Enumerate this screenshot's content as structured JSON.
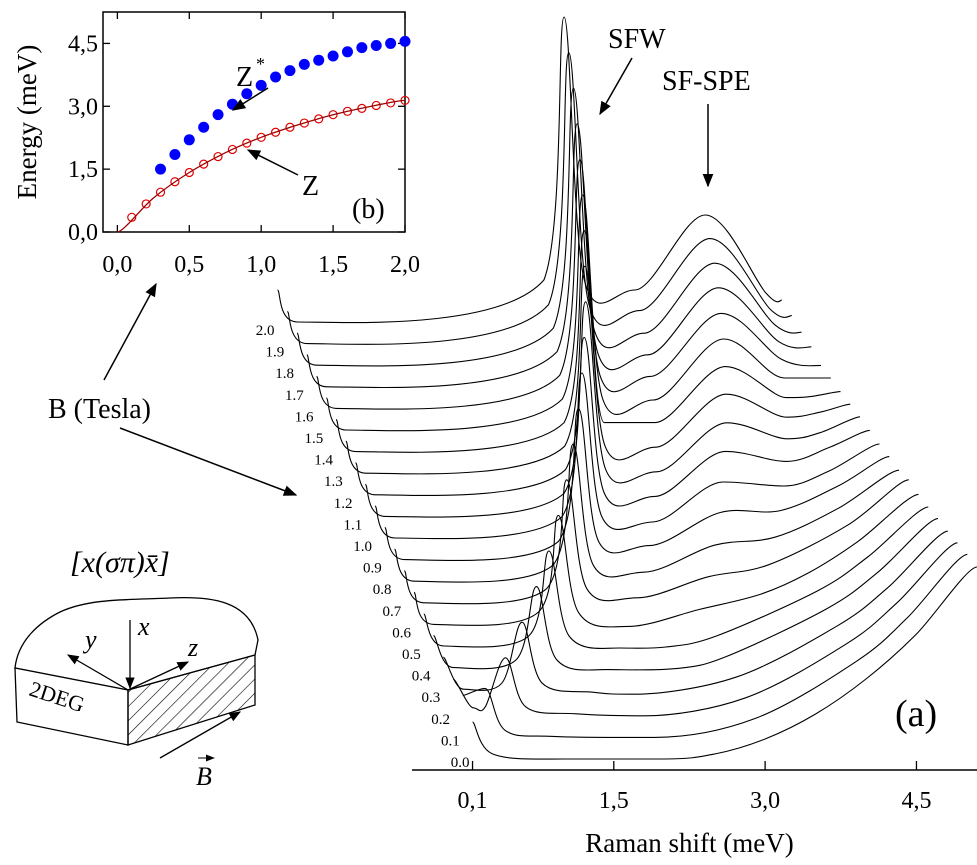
{
  "chart_data": [
    {
      "type": "scatter",
      "y_label": "Energy (meV)",
      "xlim": [
        -0.1,
        2.0
      ],
      "ylim": [
        0,
        5.25
      ],
      "xticks": [
        {
          "value": 0,
          "label": "0,0"
        },
        {
          "value": 0.5,
          "label": "0,5"
        },
        {
          "value": 1.0,
          "label": "1,0"
        },
        {
          "value": 1.5,
          "label": "1,5"
        },
        {
          "value": 2.0,
          "label": "2,0"
        }
      ],
      "yticks": [
        {
          "value": 0,
          "label": "0,0"
        },
        {
          "value": 1.5,
          "label": "1,5"
        },
        {
          "value": 3.0,
          "label": "3,0"
        },
        {
          "value": 4.5,
          "label": "4,5"
        }
      ],
      "series": [
        {
          "style": "dots",
          "color": "#0000ff",
          "x": [
            0.3,
            0.4,
            0.5,
            0.6,
            0.7,
            0.8,
            0.9,
            1.0,
            1.1,
            1.2,
            1.3,
            1.4,
            1.5,
            1.6,
            1.7,
            1.8,
            1.9,
            2.0
          ],
          "values": [
            1.5,
            1.85,
            2.2,
            2.5,
            2.8,
            3.05,
            3.3,
            3.5,
            3.7,
            3.85,
            4.0,
            4.1,
            4.2,
            4.3,
            4.4,
            4.45,
            4.5,
            4.55
          ]
        },
        {
          "style": "circles",
          "color": "#e00000",
          "x": [
            0.1,
            0.2,
            0.3,
            0.4,
            0.5,
            0.6,
            0.7,
            0.8,
            0.9,
            1.0,
            1.1,
            1.2,
            1.3,
            1.4,
            1.5,
            1.6,
            1.7,
            1.8,
            1.9,
            2.0
          ],
          "values": [
            0.35,
            0.67,
            0.95,
            1.2,
            1.42,
            1.62,
            1.8,
            1.97,
            2.12,
            2.26,
            2.38,
            2.5,
            2.6,
            2.7,
            2.8,
            2.88,
            2.95,
            3.02,
            3.08,
            3.14
          ]
        },
        {
          "style": "line",
          "color": "#a00000",
          "x": [
            0,
            0.25,
            0.5,
            0.75,
            1.0,
            1.25,
            1.5,
            1.75,
            2.0
          ],
          "values": [
            0,
            0.81,
            1.42,
            1.89,
            2.26,
            2.55,
            2.8,
            2.99,
            3.14
          ]
        }
      ],
      "annotations": [
        {
          "text": "Z"
        },
        {
          "text": "*"
        },
        {
          "text": "Z"
        },
        {
          "text": "(b)"
        }
      ]
    },
    {
      "type": "waterfall",
      "x_label": "Raman shift (meV)",
      "color": "#000000",
      "xlim": [
        -0.5,
        5.1
      ],
      "xticks": [
        {
          "value": 0.1,
          "label": "0,1"
        },
        {
          "value": 1.5,
          "label": "1,5"
        },
        {
          "value": 3.0,
          "label": "3,0"
        },
        {
          "value": 4.5,
          "label": "4,5"
        }
      ],
      "series": [
        {
          "name": "0.0",
          "x": [
            0.1,
            0.3,
            1.0,
            2.0,
            2.5,
            3.0,
            3.5,
            4.0,
            4.5,
            5.1
          ],
          "values": [
            40,
            8,
            3,
            3,
            8,
            23,
            48,
            83,
            128,
            195
          ]
        },
        {
          "name": "0.1",
          "x": [
            0.1,
            0.32,
            0.52,
            1.0,
            2.0,
            3.0,
            4.0,
            4.5,
            5.1
          ],
          "values": [
            45,
            52,
            10,
            4,
            3,
            22,
            79,
            122,
            186
          ]
        },
        {
          "name": "0.2",
          "x": [
            0.1,
            0.3,
            0.42,
            0.62,
            0.82,
            1.32,
            2.0,
            3.0,
            4.0,
            4.5,
            5.1
          ],
          "values": [
            40,
            11,
            12,
            61,
            12,
            5,
            3,
            21,
            75,
            116,
            176
          ]
        },
        {
          "name": "0.3",
          "x": [
            0.1,
            0.3,
            0.68,
            0.88,
            1.08,
            1.58,
            2.0,
            3.0,
            4.0,
            4.5,
            5.1
          ],
          "values": [
            40,
            8,
            14,
            75,
            14,
            5,
            3,
            20,
            71,
            109,
            166
          ]
        },
        {
          "name": "0.4",
          "x": [
            0.1,
            0.3,
            0.92,
            1.12,
            1.32,
            1.82,
            2.5,
            3.0,
            4.0,
            4.5,
            5.1
          ],
          "values": [
            40,
            8,
            16,
            89,
            16,
            6,
            7,
            19,
            67,
            103,
            157
          ]
        },
        {
          "name": "0.5",
          "x": [
            0.1,
            0.3,
            1.14,
            1.34,
            1.54,
            2.04,
            2.5,
            3.0,
            4.0,
            4.5,
            5.1
          ],
          "values": [
            40,
            8,
            18,
            103,
            18,
            6,
            7,
            18,
            63,
            97,
            147
          ]
        },
        {
          "name": "0.6",
          "x": [
            0.1,
            0.3,
            1.33,
            1.53,
            1.73,
            2.23,
            2.93,
            3.53,
            4.0,
            4.5,
            5.1
          ],
          "values": [
            40,
            8,
            20,
            117,
            20,
            6,
            23,
            38,
            59,
            91,
            138
          ]
        },
        {
          "name": "0.7",
          "x": [
            0.1,
            0.3,
            1.51,
            1.71,
            1.91,
            2.41,
            3.11,
            3.71,
            4.5,
            5.1
          ],
          "values": [
            40,
            8,
            22,
            131,
            22,
            13,
            34,
            46,
            86,
            131
          ]
        },
        {
          "name": "0.8",
          "x": [
            0.1,
            0.3,
            1.67,
            1.87,
            2.07,
            2.57,
            3.27,
            3.87,
            4.5,
            5.1
          ],
          "values": [
            40,
            8,
            24,
            145,
            24,
            17,
            44,
            52,
            81,
            119
          ]
        },
        {
          "name": "0.9",
          "x": [
            0.1,
            0.3,
            1.82,
            2.02,
            2.22,
            2.72,
            3.42,
            4.02,
            4.6,
            5.1
          ],
          "values": [
            40,
            8,
            26,
            159,
            26,
            22,
            55,
            57,
            82,
            111
          ]
        },
        {
          "name": "1.0",
          "x": [
            0.1,
            0.3,
            1.95,
            2.15,
            2.35,
            2.85,
            3.55,
            4.15,
            4.6,
            5.1
          ],
          "values": [
            40,
            8,
            29,
            173,
            29,
            24,
            64,
            60,
            75,
            102
          ]
        },
        {
          "name": "1.1",
          "x": [
            0.1,
            0.3,
            2.07,
            2.27,
            2.47,
            2.97,
            3.67,
            4.27,
            4.7,
            5.1
          ],
          "values": [
            40,
            8,
            31,
            187,
            31,
            28,
            73,
            63,
            77,
            94
          ]
        },
        {
          "name": "1.2",
          "x": [
            0.1,
            0.3,
            2.18,
            2.38,
            2.58,
            3.08,
            3.78,
            4.38,
            4.7,
            5.1
          ],
          "values": [
            40,
            8,
            33,
            201,
            33,
            31,
            80,
            64,
            70,
            86
          ]
        },
        {
          "name": "1.3",
          "x": [
            0.1,
            0.3,
            2.27,
            2.47,
            2.67,
            3.17,
            3.87,
            4.47,
            4.8,
            5.1
          ],
          "values": [
            40,
            8,
            35,
            215,
            35,
            34,
            87,
            64,
            69,
            77
          ]
        },
        {
          "name": "1.4",
          "x": [
            0.1,
            0.3,
            2.36,
            2.56,
            2.76,
            3.26,
            3.96,
            4.56,
            4.8,
            5.1
          ],
          "values": [
            40,
            8,
            37,
            229,
            37,
            37,
            93,
            62,
            63,
            68
          ]
        },
        {
          "name": "1.5",
          "x": [
            0.1,
            0.3,
            2.44,
            2.64,
            2.84,
            3.34,
            4.04,
            4.64,
            5.1
          ],
          "values": [
            40,
            8,
            39,
            243,
            39,
            38,
            99,
            60,
            60
          ]
        },
        {
          "name": "1.6",
          "x": [
            0.1,
            0.3,
            2.51,
            2.71,
            2.91,
            3.41,
            4.11,
            4.71,
            5.1
          ],
          "values": [
            40,
            8,
            41,
            257,
            41,
            40,
            103,
            57,
            51
          ]
        },
        {
          "name": "1.7",
          "x": [
            0.1,
            0.3,
            2.58,
            2.78,
            2.98,
            3.48,
            4.18,
            4.78,
            5.1
          ],
          "values": [
            40,
            8,
            43,
            271,
            43,
            40,
            107,
            53,
            48
          ]
        },
        {
          "name": "1.8",
          "x": [
            0.1,
            0.3,
            2.64,
            2.84,
            3.04,
            3.54,
            4.24,
            4.84,
            5.1
          ],
          "values": [
            40,
            8,
            45,
            285,
            45,
            40,
            110,
            48,
            41
          ]
        },
        {
          "name": "1.9",
          "x": [
            0.1,
            0.3,
            2.69,
            2.89,
            3.09,
            3.59,
            4.29,
            4.89,
            5.1
          ],
          "values": [
            40,
            8,
            47,
            299,
            47,
            41,
            113,
            42,
            36
          ]
        },
        {
          "name": "2.0",
          "x": [
            0.1,
            0.3,
            2.74,
            2.94,
            3.14,
            3.64,
            4.34,
            4.94,
            5.1
          ],
          "values": [
            40,
            8,
            50,
            313,
            50,
            40,
            115,
            37,
            30
          ]
        }
      ],
      "annotations": [
        {
          "text": "SFW"
        },
        {
          "text": "SF-SPE"
        },
        {
          "text": "(a)"
        },
        {
          "text": "B (Tesla)"
        }
      ],
      "sketch": {
        "geometry": "[x(σπ)x̄]",
        "labels": [
          "x",
          "y",
          "z",
          "2DEG",
          "B"
        ]
      }
    }
  ]
}
